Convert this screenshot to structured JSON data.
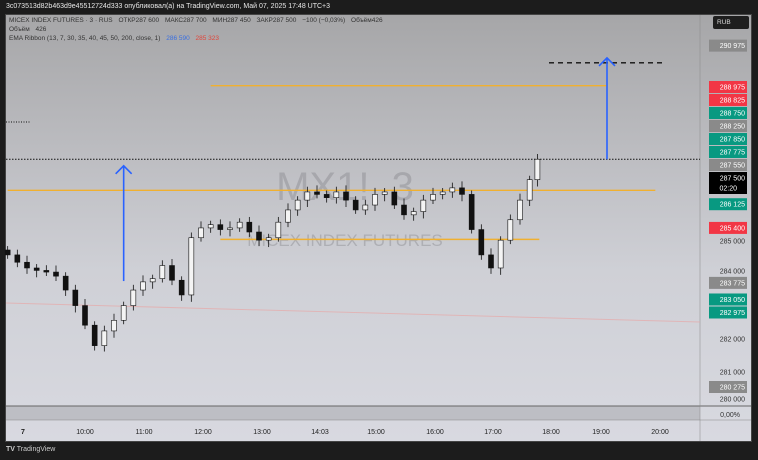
{
  "header": {
    "title": "3c073513d82b463d9e45512724d333 опубликовал(а) на TradingView.com, Май 07, 2025 17:48 UTC+3"
  },
  "legend": {
    "symbol": "MICEX INDEX FUTURES · 3 · RUS",
    "open": "ОТКР287 600",
    "high": "МАКС287 700",
    "low": "МИН287 450",
    "close": "ЗАКР287 500",
    "change": "−100 (−0,03%)",
    "volume_inline": "Объём426",
    "volume_label": "Объём",
    "volume_value": "426",
    "ema_label": "EMA Ribbon (13, 7, 30, 35, 40, 45, 50, 200, close, 1)",
    "ema_value_1": "286 590",
    "ema_value_2": "285 323"
  },
  "currency_button": "RUB",
  "watermark": {
    "symbol": "MX1!, 3",
    "name": "MICEX INDEX FUTURES"
  },
  "footer": {
    "brand": "TradingView"
  },
  "colors": {
    "up_label": "#089981",
    "down_label": "#f23645",
    "gray_label": "#8a8a8a",
    "orange_line": "#f0b030",
    "arrow": "#2962ff",
    "current_price": "#000000"
  },
  "chart_data": {
    "type": "candlestick",
    "interval": "3",
    "x": [
      "08:40",
      "08:50",
      "09:00",
      "09:10",
      "09:20",
      "09:30",
      "09:40",
      "09:50",
      "10:00",
      "10:10",
      "10:20",
      "10:30",
      "10:40",
      "10:50",
      "11:00",
      "11:10",
      "11:20",
      "11:30",
      "11:40",
      "11:50",
      "12:00",
      "12:10",
      "12:20",
      "12:30",
      "12:40",
      "12:50",
      "13:00",
      "13:10",
      "13:20",
      "13:30",
      "13:40",
      "13:50",
      "14:00",
      "14:10",
      "14:20",
      "14:30",
      "14:40",
      "14:50",
      "15:00",
      "15:10",
      "15:20",
      "15:30",
      "15:40",
      "15:50",
      "16:00",
      "16:10",
      "16:20",
      "16:30",
      "16:40",
      "16:50",
      "17:00",
      "17:10",
      "17:20",
      "17:30",
      "17:40",
      "17:48"
    ],
    "close": [
      284575,
      284350,
      284175,
      284100,
      284050,
      283925,
      283500,
      283025,
      282425,
      281800,
      282250,
      282575,
      283025,
      283500,
      283750,
      283850,
      284250,
      283800,
      283350,
      285100,
      285400,
      285500,
      285350,
      285400,
      285575,
      285275,
      285025,
      285100,
      285575,
      285950,
      286250,
      286500,
      286425,
      286325,
      286500,
      286250,
      285950,
      286100,
      286425,
      286500,
      286100,
      285800,
      285900,
      286250,
      286425,
      286500,
      286625,
      286425,
      285350,
      284575,
      284175,
      285025,
      285650,
      286250,
      286875,
      287500
    ],
    "y_ticks": [
      "285 000",
      "284 000",
      "282 000",
      "281 000",
      "280 000"
    ],
    "x_ticks": [
      "7",
      "10:00",
      "11:00",
      "12:00",
      "13:00",
      "14:03",
      "15:00",
      "16:00",
      "17:00",
      "18:00",
      "19:00",
      "20:00"
    ],
    "price_labels": [
      {
        "text": "290 975",
        "kind": "gray",
        "price": 290975
      },
      {
        "text": "288 975",
        "kind": "down",
        "price": 288975
      },
      {
        "text": "288 825",
        "kind": "down",
        "price": 288825
      },
      {
        "text": "288 750",
        "kind": "up",
        "price": 288750
      },
      {
        "text": "288 250",
        "kind": "gray",
        "price": 288250
      },
      {
        "text": "287 850",
        "kind": "up",
        "price": 287850
      },
      {
        "text": "287 775",
        "kind": "up",
        "price": 287775
      },
      {
        "text": "287 550",
        "kind": "gray",
        "price": 287550
      },
      {
        "text": "286 125",
        "kind": "up",
        "price": 286125
      },
      {
        "text": "285 400",
        "kind": "down",
        "price": 285400
      },
      {
        "text": "283 775",
        "kind": "gray",
        "price": 283775
      },
      {
        "text": "283 050",
        "kind": "up",
        "price": 283050
      },
      {
        "text": "282 975",
        "kind": "up",
        "price": 282975
      },
      {
        "text": "280 275",
        "kind": "gray",
        "price": 280275
      }
    ],
    "current_price": {
      "text": "287 500",
      "countdown": "02:20",
      "price": 287500
    },
    "pane_percent": "0,00%",
    "horizontal_lines": [
      {
        "style": "dashed-black",
        "price": 290450,
        "from": "18:00",
        "to": "20:00"
      },
      {
        "style": "orange",
        "price": 289750,
        "from": "12:10",
        "to": "19:00"
      },
      {
        "style": "orange",
        "price": 286550,
        "from": "08:40",
        "to": "19:50"
      },
      {
        "style": "orange",
        "price": 285050,
        "from": "12:20",
        "to": "17:50"
      }
    ],
    "arrows": [
      {
        "at": "10:40",
        "from": 283775,
        "to": 287300
      },
      {
        "at": "19:00",
        "from": 287500,
        "to": 290600
      }
    ]
  }
}
